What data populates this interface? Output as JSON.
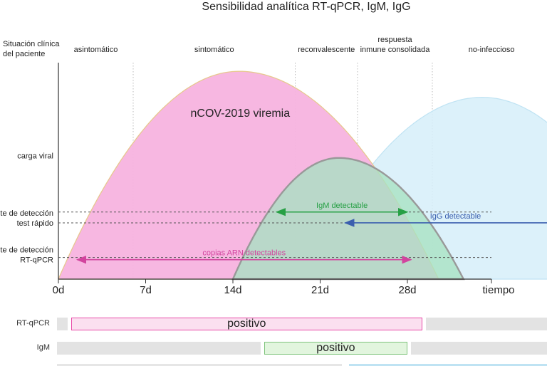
{
  "chart_data": {
    "type": "area",
    "title": "Sensibilidad analítica RT-qPCR, IgM, IgG",
    "ylabel_header": [
      "Situación clínica",
      "del paciente"
    ],
    "xlabel": "tiempo",
    "x_ticks": [
      "0d",
      "7d",
      "14d",
      "21d",
      "28d"
    ],
    "x_tick_values": [
      0,
      7,
      14,
      21,
      28
    ],
    "xlim": [
      0,
      35
    ],
    "phases": [
      {
        "label": "asintomático",
        "label_lines": [
          "asintomático"
        ],
        "start": 0,
        "end": 6
      },
      {
        "label": "sintomático",
        "label_lines": [
          "sintomático"
        ],
        "start": 6,
        "end": 19
      },
      {
        "label": "reconvalescente",
        "label_lines": [
          "reconvalescente"
        ],
        "start": 19,
        "end": 24
      },
      {
        "label": "respuesta inmune consolidada",
        "label_lines": [
          "respuesta",
          "inmune consolidada"
        ],
        "start": 24,
        "end": 30
      },
      {
        "label": "no-infeccioso",
        "label_lines": [
          "no-infeccioso"
        ],
        "start": 30,
        "end": 40
      }
    ],
    "y_labels": [
      {
        "key": "viral",
        "lines": [
          "carga viral"
        ],
        "level": 0.57
      },
      {
        "key": "rapid",
        "lines": [
          "límite de detección",
          "test rápido"
        ],
        "level": 0.26
      },
      {
        "key": "pcr",
        "lines": [
          "límite de detección",
          "RT-qPCR"
        ],
        "level": 0.09
      }
    ],
    "series": [
      {
        "name": "nCOV-2019 viremia",
        "start": 0,
        "peak_x": 14.5,
        "end": 30.5,
        "peak": 0.96,
        "color": "#f7b3df"
      },
      {
        "name": "IgM",
        "start": 14,
        "peak_x": 22.5,
        "end": 32.5,
        "peak": 0.56,
        "color": "#a8e2c2"
      },
      {
        "name": "IgG",
        "start": 19.5,
        "peak_x": 34,
        "end": 48,
        "peak": 0.84,
        "color": "#d6eef9"
      }
    ],
    "annotations": [
      {
        "text": "IgM detectable",
        "x_from": 17.5,
        "x_to": 28,
        "level": 0.31,
        "color": "#27a045",
        "arrows": "both"
      },
      {
        "text": "IgG detectable",
        "x_from": 23,
        "x_to": 40,
        "level": 0.26,
        "color": "#3b5fae",
        "arrows": "left"
      },
      {
        "text": "copias ARN detectables",
        "x_from": 1.5,
        "x_to": 28.3,
        "level": 0.09,
        "color": "#d2449e",
        "arrows": "both"
      }
    ],
    "viremia_label": "nCOV-2019 viremia",
    "results": [
      {
        "test": "RT-qPCR",
        "positive_from": 1,
        "positive_to": 29.2,
        "text": "positivo",
        "fill": "#fbe0f0",
        "border": "#e84aa8"
      },
      {
        "test": "IgM",
        "positive_from": 16.5,
        "positive_to": 28,
        "text": "positivo",
        "fill": "#e2f5de",
        "border": "#7fc47c"
      }
    ]
  }
}
